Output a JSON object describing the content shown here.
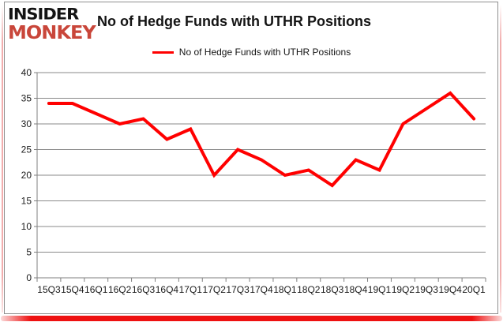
{
  "branding": {
    "logo_line1": "INSIDER",
    "logo_line2": "MONKEY",
    "logo_color1": "#141414",
    "logo_color2": "#C9463A"
  },
  "header": {
    "title": "No of Hedge Funds with UTHR Positions"
  },
  "legend": {
    "label": "No of Hedge Funds with UTHR Positions",
    "line_color": "#FF0000"
  },
  "frame": {
    "border_color": "#8f8f8f",
    "bottom_bar_color": "#EE1111",
    "side_glow_color": "#F2ADAD"
  },
  "chart_data": {
    "type": "line",
    "title": "No of Hedge Funds with UTHR Positions",
    "categories": [
      "15Q3",
      "15Q4",
      "16Q1",
      "16Q2",
      "16Q3",
      "16Q4",
      "17Q1",
      "17Q2",
      "17Q3",
      "17Q4",
      "18Q1",
      "18Q2",
      "18Q3",
      "18Q4",
      "19Q1",
      "19Q2",
      "19Q3",
      "19Q4",
      "20Q1"
    ],
    "series": [
      {
        "name": "No of Hedge Funds with UTHR Positions",
        "color": "#FF0000",
        "values": [
          34,
          34,
          32,
          30,
          31,
          27,
          29,
          20,
          25,
          23,
          20,
          21,
          18,
          23,
          21,
          30,
          33,
          36,
          31
        ]
      }
    ],
    "xlabel": "",
    "ylabel": "",
    "ylim": [
      0,
      40
    ],
    "yticks": [
      0,
      5,
      10,
      15,
      20,
      25,
      30,
      35,
      40
    ],
    "grid": "horizontal",
    "gridline_color": "#8a8a8a",
    "axis_color": "#7f7f7f",
    "tick_label_color": "#1a1a1a",
    "legend_position": "top-center"
  }
}
